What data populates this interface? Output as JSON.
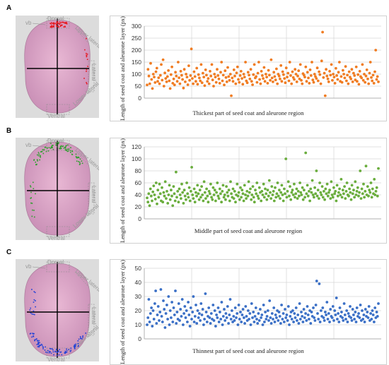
{
  "panels": [
    {
      "letter": "A",
      "grain_labels": {
        "top": "Dorsal",
        "vb": "vb",
        "upper_lateral": "Upper lateral",
        "lateral": "Lateral",
        "lower_lateral": "Lower lateral",
        "bottom": "Ventral"
      },
      "marker_color": "#e8141b",
      "marker_zone": "dorsal"
    },
    {
      "letter": "B",
      "grain_labels": {
        "top": "Dorsal",
        "vb": "vb",
        "upper_lateral": "Upper lateral",
        "lateral": "Lateral",
        "lower_lateral": "Lower lateral",
        "bottom": "Ventral"
      },
      "marker_color": "#2aa02a",
      "marker_zone": "upper"
    },
    {
      "letter": "C",
      "grain_labels": {
        "top": "Dorsal",
        "vb": "vb",
        "upper_lateral": "Upper lateral",
        "lateral": "Lateral",
        "lower_lateral": "Lower lateral",
        "bottom": "Ventral"
      },
      "marker_color": "#1d3fd8",
      "marker_zone": "ventral"
    }
  ],
  "chart_data": [
    {
      "type": "scatter",
      "ylabel": "Length of seed coat and aleurone  layer  (px)",
      "xlabel": "Thickest part of seed coat and aleurone region",
      "ylim": [
        0,
        300
      ],
      "yticks": [
        0,
        50,
        100,
        150,
        200,
        250,
        300
      ],
      "grid": true,
      "color": "#f07c22",
      "y": [
        55,
        120,
        92,
        60,
        145,
        78,
        40,
        100,
        88,
        65,
        110,
        125,
        70,
        85,
        60,
        95,
        140,
        75,
        160,
        50,
        105,
        82,
        68,
        90,
        115,
        72,
        40,
        98,
        130,
        62,
        80,
        55,
        108,
        92,
        70,
        150,
        85,
        60,
        112,
        95,
        78,
        42,
        120,
        68,
        100,
        88,
        56,
        135,
        74,
        94,
        205,
        82,
        60,
        110,
        90,
        70,
        125,
        58,
        98,
        84,
        72,
        140,
        64,
        104,
        88,
        52,
        118,
        96,
        70,
        82,
        60,
        112,
        92,
        140,
        76,
        50,
        100,
        88,
        66,
        120,
        94,
        80,
        62,
        108,
        150,
        72,
        96,
        55,
        114,
        86,
        68,
        128,
        90,
        74,
        100,
        10,
        84,
        70,
        118,
        92,
        60,
        105,
        130,
        78,
        66,
        94,
        112,
        82,
        58,
        100,
        88,
        150,
        72,
        64,
        108,
        96,
        80,
        120,
        70,
        56,
        98,
        140,
        84,
        90,
        66,
        104,
        150,
        78,
        60,
        112,
        94,
        82,
        128,
        70,
        100,
        88,
        62,
        116,
        96,
        74,
        160,
        84,
        68,
        108,
        90,
        76,
        122,
        60,
        100,
        92,
        80,
        136,
        70,
        110,
        98,
        82,
        64,
        126,
        88,
        104,
        72,
        150,
        94,
        60,
        110,
        86,
        78,
        120,
        100,
        68,
        92,
        114,
        80,
        140,
        74,
        60,
        102,
        96,
        88,
        130,
        70,
        108,
        84,
        62,
        118,
        94,
        150,
        76,
        66,
        100,
        90,
        82,
        126,
        72,
        110,
        98,
        60,
        155,
        275,
        86,
        104,
        10,
        120,
        92,
        80,
        68,
        112,
        96,
        140,
        74,
        100,
        88,
        62,
        124,
        94,
        78,
        108,
        150,
        70,
        90,
        66,
        116,
        100,
        84,
        132,
        72,
        96,
        60,
        110,
        88,
        80,
        120,
        68,
        104,
        94,
        76,
        130,
        70,
        98,
        58,
        112,
        90,
        84,
        140,
        74,
        100,
        66,
        92,
        118,
        80,
        60,
        104,
        150,
        86,
        72,
        96,
        62,
        110,
        200,
        78,
        90,
        68
      ]
    },
    {
      "type": "scatter",
      "ylabel": "Length of seed coat and aleurone  layer  (px)",
      "xlabel": "Middle part of seed coat and aleurone region",
      "ylim": [
        0,
        120
      ],
      "yticks": [
        0,
        20,
        40,
        60,
        80,
        100,
        120
      ],
      "grid": true,
      "color": "#6aad3d",
      "y": [
        35,
        28,
        42,
        22,
        50,
        38,
        30,
        45,
        55,
        40,
        33,
        60,
        25,
        48,
        36,
        58,
        42,
        30,
        52,
        28,
        44,
        38,
        62,
        34,
        46,
        26,
        40,
        56,
        32,
        48,
        38,
        22,
        54,
        42,
        30,
        78,
        36,
        46,
        28,
        50,
        40,
        34,
        58,
        44,
        26,
        48,
        38,
        32,
        60,
        42,
        36,
        52,
        30,
        46,
        86,
        40,
        34,
        50,
        28,
        44,
        38,
        56,
        42,
        32,
        48,
        36,
        54,
        40,
        30,
        62,
        44,
        34,
        50,
        38,
        28,
        46,
        42,
        58,
        36,
        32,
        52,
        40,
        48,
        30,
        44,
        60,
        38,
        34,
        50,
        42,
        28,
        46,
        56,
        36,
        40,
        32,
        54,
        44,
        38,
        48,
        30,
        62,
        42,
        36,
        50,
        34,
        46,
        28,
        40,
        58,
        38,
        44,
        32,
        52,
        36,
        48,
        42,
        30,
        56,
        40,
        34,
        46,
        38,
        62,
        44,
        50,
        32,
        40,
        54,
        36,
        28,
        48,
        42,
        60,
        38,
        34,
        52,
        44,
        30,
        46,
        40,
        58,
        36,
        50,
        42,
        32,
        48,
        38,
        64,
        44,
        34,
        54,
        40,
        46,
        30,
        52,
        36,
        42,
        60,
        38,
        48,
        34,
        44,
        56,
        40,
        30,
        50,
        42,
        100,
        36,
        46,
        62,
        38,
        54,
        32,
        44,
        48,
        40,
        58,
        36,
        42,
        50,
        34,
        46,
        38,
        60,
        44,
        40,
        52,
        32,
        48,
        36,
        110,
        42,
        56,
        38,
        46,
        30,
        50,
        44,
        64,
        40,
        36,
        52,
        42,
        80,
        38,
        48,
        34,
        60,
        44,
        40,
        54,
        36,
        46,
        32,
        50,
        42,
        58,
        38,
        44,
        48,
        34,
        62,
        40,
        36,
        52,
        42,
        46,
        30,
        56,
        38,
        44,
        50,
        40,
        66,
        36,
        48,
        42,
        54,
        34,
        46,
        60,
        40,
        38,
        50,
        44,
        32,
        56,
        42,
        48,
        36,
        62,
        40,
        46,
        52,
        38,
        44,
        80,
        34,
        50,
        42,
        58,
        36,
        46,
        88,
        40,
        54,
        38,
        48,
        44,
        60,
        36,
        50,
        42,
        66,
        40,
        46,
        52,
        38,
        84
      ]
    },
    {
      "type": "scatter",
      "ylabel": "Length of seed coat and aleurone  layer  (px)",
      "xlabel": "Thinnest part of seed coat and aleurone region",
      "ylim": [
        0,
        50
      ],
      "yticks": [
        0,
        10,
        20,
        30,
        40,
        50
      ],
      "grid": true,
      "color": "#3a6fc6",
      "y": [
        10,
        15,
        28,
        12,
        18,
        22,
        9,
        20,
        14,
        25,
        34,
        11,
        17,
        23,
        13,
        19,
        35,
        16,
        12,
        27,
        21,
        8,
        18,
        24,
        14,
        30,
        10,
        20,
        15,
        26,
        12,
        22,
        17,
        34,
        11,
        19,
        14,
        25,
        13,
        21,
        16,
        28,
        10,
        18,
        23,
        15,
        20,
        12,
        26,
        17,
        9,
        22,
        14,
        19,
        30,
        12,
        16,
        24,
        11,
        20,
        15,
        18,
        13,
        25,
        17,
        21,
        10,
        14,
        32,
        19,
        12,
        16,
        22,
        15,
        11,
        18,
        14,
        24,
        13,
        20,
        9,
        17,
        15,
        22,
        12,
        19,
        14,
        26,
        10,
        16,
        21,
        13,
        18,
        15,
        23,
        11,
        17,
        28,
        14,
        20,
        12,
        16,
        13,
        22,
        15,
        18,
        10,
        24,
        14,
        19,
        12,
        17,
        21,
        15,
        11,
        23,
        16,
        13,
        20,
        14,
        18,
        10,
        25,
        15,
        19,
        12,
        16,
        22,
        14,
        11,
        18,
        13,
        21,
        15,
        17,
        10,
        24,
        12,
        19,
        14,
        16,
        20,
        13,
        27,
        15,
        11,
        18,
        14,
        22,
        12,
        17,
        15,
        20,
        13,
        19,
        16,
        11,
        24,
        14,
        18,
        12,
        21,
        15,
        17,
        13,
        23,
        10,
        16,
        19,
        14,
        20,
        12,
        18,
        15,
        22,
        13,
        17,
        11,
        25,
        14,
        19,
        16,
        12,
        21,
        15,
        18,
        13,
        23,
        17,
        14,
        20,
        11,
        19,
        16,
        22,
        15,
        13,
        24,
        41,
        18,
        14,
        39,
        12,
        20,
        16,
        22,
        15,
        13,
        19,
        17,
        26,
        14,
        18,
        12,
        21,
        16,
        15,
        23,
        13,
        20,
        17,
        29,
        14,
        18,
        12,
        22,
        16,
        19,
        15,
        13,
        25,
        17,
        14,
        20,
        12,
        18,
        16,
        23,
        15,
        13,
        21,
        17,
        14,
        19,
        12,
        22,
        16,
        18,
        15,
        24,
        13,
        20,
        14,
        17,
        12,
        21,
        16,
        19,
        15,
        23,
        13,
        18,
        14,
        20,
        17,
        12,
        22,
        15,
        19,
        16,
        25
      ]
    }
  ]
}
